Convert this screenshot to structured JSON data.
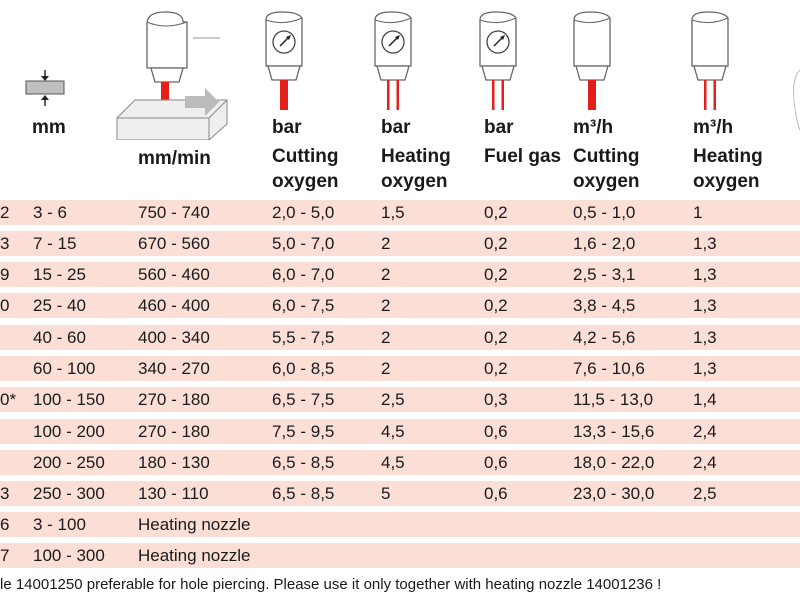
{
  "headers": {
    "thickness_unit": "mm",
    "speed_unit": "mm/min",
    "cutting_oxygen_pressure": {
      "unit": "bar",
      "line1": "Cutting",
      "line2": "oxygen"
    },
    "heating_oxygen_pressure": {
      "unit": "bar",
      "line1": "Heating",
      "line2": "oxygen"
    },
    "fuel_gas_pressure": {
      "unit": "bar",
      "line1": "Fuel gas"
    },
    "cutting_oxygen_flow": {
      "unit": "m³/h",
      "line1": "Cutting",
      "line2": "oxygen"
    },
    "heating_oxygen_flow": {
      "unit": "m³/h",
      "line1": "Heating",
      "line2": "oxygen"
    }
  },
  "rows": [
    {
      "nozzle": "2",
      "thickness": "3 - 6",
      "speed": "750 - 740",
      "cut_o2_bar": "2,0 - 5,0",
      "heat_o2_bar": "1,5",
      "fuel_bar": "0,2",
      "cut_o2_flow": "0,5 - 1,0",
      "heat_o2_flow": "1"
    },
    {
      "nozzle": "3",
      "thickness": "7 - 15",
      "speed": "670 - 560",
      "cut_o2_bar": "5,0 - 7,0",
      "heat_o2_bar": "2",
      "fuel_bar": "0,2",
      "cut_o2_flow": "1,6 - 2,0",
      "heat_o2_flow": "1,3"
    },
    {
      "nozzle": "9",
      "thickness": "15 - 25",
      "speed": "560 - 460",
      "cut_o2_bar": "6,0 - 7,0",
      "heat_o2_bar": "2",
      "fuel_bar": "0,2",
      "cut_o2_flow": "2,5 - 3,1",
      "heat_o2_flow": "1,3"
    },
    {
      "nozzle": "0",
      "thickness": "25 - 40",
      "speed": "460 - 400",
      "cut_o2_bar": "6,0 - 7,5",
      "heat_o2_bar": "2",
      "fuel_bar": "0,2",
      "cut_o2_flow": "3,8 - 4,5",
      "heat_o2_flow": "1,3"
    },
    {
      "nozzle": "",
      "thickness": "40 - 60",
      "speed": "400 - 340",
      "cut_o2_bar": "5,5 - 7,5",
      "heat_o2_bar": "2",
      "fuel_bar": "0,2",
      "cut_o2_flow": "4,2 - 5,6",
      "heat_o2_flow": "1,3"
    },
    {
      "nozzle": "",
      "thickness": "60 - 100",
      "speed": "340 - 270",
      "cut_o2_bar": "6,0 - 8,5",
      "heat_o2_bar": "2",
      "fuel_bar": "0,2",
      "cut_o2_flow": "7,6 - 10,6",
      "heat_o2_flow": "1,3"
    },
    {
      "nozzle": "0*",
      "thickness": "100 - 150",
      "speed": "270 - 180",
      "cut_o2_bar": "6,5 - 7,5",
      "heat_o2_bar": "2,5",
      "fuel_bar": "0,3",
      "cut_o2_flow": "11,5 - 13,0",
      "heat_o2_flow": "1,4"
    },
    {
      "nozzle": "",
      "thickness": "100 - 200",
      "speed": "270 - 180",
      "cut_o2_bar": "7,5 - 9,5",
      "heat_o2_bar": "4,5",
      "fuel_bar": "0,6",
      "cut_o2_flow": "13,3 - 15,6",
      "heat_o2_flow": "2,4"
    },
    {
      "nozzle": "",
      "thickness": "200 - 250",
      "speed": "180 - 130",
      "cut_o2_bar": "6,5 - 8,5",
      "heat_o2_bar": "4,5",
      "fuel_bar": "0,6",
      "cut_o2_flow": "18,0 - 22,0",
      "heat_o2_flow": "2,4"
    },
    {
      "nozzle": "3",
      "thickness": "250 - 300",
      "speed": "130 - 110",
      "cut_o2_bar": "6,5 - 8,5",
      "heat_o2_bar": "5",
      "fuel_bar": "0,6",
      "cut_o2_flow": "23,0 - 30,0",
      "heat_o2_flow": "2,5"
    },
    {
      "nozzle": "6",
      "thickness": "3 - 100",
      "speed": "Heating nozzle",
      "cut_o2_bar": "",
      "heat_o2_bar": "",
      "fuel_bar": "",
      "cut_o2_flow": "",
      "heat_o2_flow": ""
    },
    {
      "nozzle": "7",
      "thickness": "100 - 300",
      "speed": "Heating nozzle",
      "cut_o2_bar": "",
      "heat_o2_bar": "",
      "fuel_bar": "",
      "cut_o2_flow": "",
      "heat_o2_flow": ""
    }
  ],
  "footnote": "le 14001250 preferable for hole piercing. Please use it only together with heating nozzle 14001236 !",
  "colors": {
    "row_band": "#fbdfd6",
    "accent_red": "#e3211a"
  }
}
